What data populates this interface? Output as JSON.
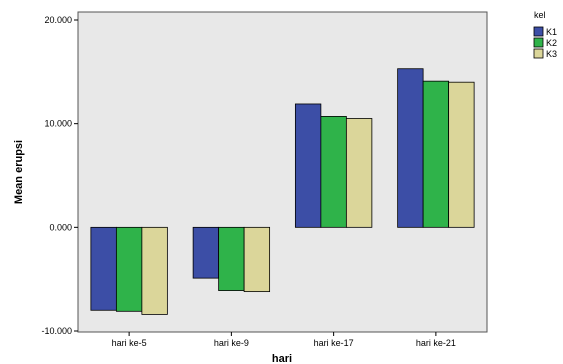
{
  "chart_data": {
    "type": "bar",
    "title": "",
    "xlabel": "hari",
    "ylabel": "Mean erupsi",
    "categories": [
      "hari ke-5",
      "hari ke-9",
      "hari ke-17",
      "hari ke-21"
    ],
    "ylim": [
      -10,
      20
    ],
    "yticks": [
      -10,
      0,
      10,
      20
    ],
    "ytick_labels": [
      "-10.000",
      "0.000",
      "10.000",
      "20.000"
    ],
    "legend_title": "kel",
    "legend_position": "top-right",
    "grid": false,
    "series": [
      {
        "name": "K1",
        "color": "#3c4ea6",
        "values": [
          -8.0,
          -4.9,
          11.9,
          15.3
        ]
      },
      {
        "name": "K2",
        "color": "#2fb34a",
        "values": [
          -8.1,
          -6.1,
          10.7,
          14.1
        ]
      },
      {
        "name": "K3",
        "color": "#dbd69a",
        "values": [
          -8.4,
          -6.2,
          10.5,
          14.0
        ]
      }
    ]
  }
}
